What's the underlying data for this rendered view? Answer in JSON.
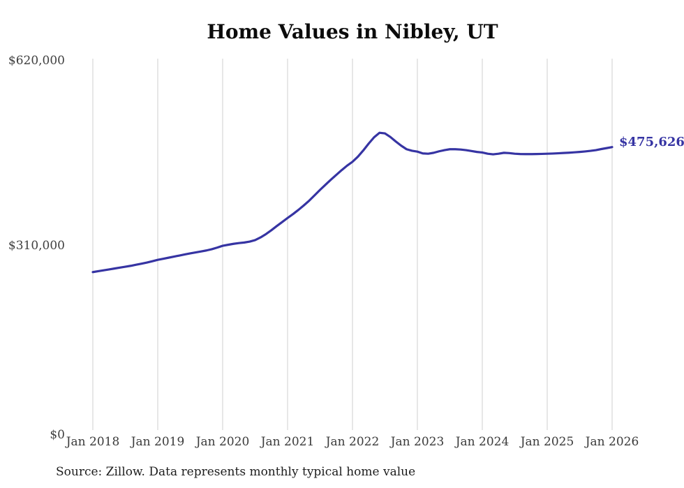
{
  "chart_data": {
    "type": "line",
    "title": "Home Values in Nibley, UT",
    "xlabel": "",
    "ylabel": "",
    "ylim": [
      0,
      620000
    ],
    "y_tick_labels": [
      "$0",
      "$310,000",
      "$620,000"
    ],
    "x_tick_labels": [
      "Jan 2018",
      "Jan 2019",
      "Jan 2020",
      "Jan 2021",
      "Jan 2022",
      "Jan 2023",
      "Jan 2024",
      "Jan 2025",
      "Jan 2026"
    ],
    "x_interval": "monthly",
    "x_range": [
      "Jan 2018",
      "Jan 2026"
    ],
    "grid": "vertical-only",
    "legend": "none",
    "end_label": "$475,626",
    "end_value": 475626,
    "source_note": "Source: Zillow. Data represents monthly typical home value",
    "series": [
      {
        "name": "Typical home value",
        "color": "#3634a3",
        "values": [
          266500,
          268000,
          269500,
          271000,
          272500,
          274000,
          275500,
          277000,
          278800,
          280600,
          282500,
          284700,
          287000,
          288800,
          290600,
          292400,
          294200,
          296000,
          297800,
          299400,
          301000,
          302700,
          304800,
          307500,
          310500,
          312200,
          313800,
          315000,
          316000,
          317500,
          320000,
          324500,
          330000,
          336500,
          343500,
          350200,
          357000,
          363500,
          370500,
          378000,
          386000,
          395000,
          404000,
          412500,
          421000,
          429000,
          437000,
          444500,
          451000,
          459500,
          470000,
          481500,
          492000,
          499500,
          498500,
          492500,
          485000,
          478000,
          472000,
          469500,
          468000,
          465000,
          464500,
          466000,
          468500,
          470500,
          472000,
          472000,
          471500,
          470500,
          469000,
          467500,
          466500,
          464500,
          463500,
          464500,
          466000,
          465500,
          464500,
          464000,
          463800,
          463800,
          464000,
          464200,
          464500,
          464800,
          465200,
          465700,
          466200,
          466800,
          467500,
          468300,
          469300,
          470500,
          472300,
          473900,
          475626
        ]
      }
    ]
  },
  "colors": {
    "line": "#3634a3",
    "end_label": "#3634a3",
    "gridline": "#cfcfcf",
    "title": "#0b0b0b",
    "axis_text": "#3f3f3f",
    "background": "#ffffff"
  }
}
